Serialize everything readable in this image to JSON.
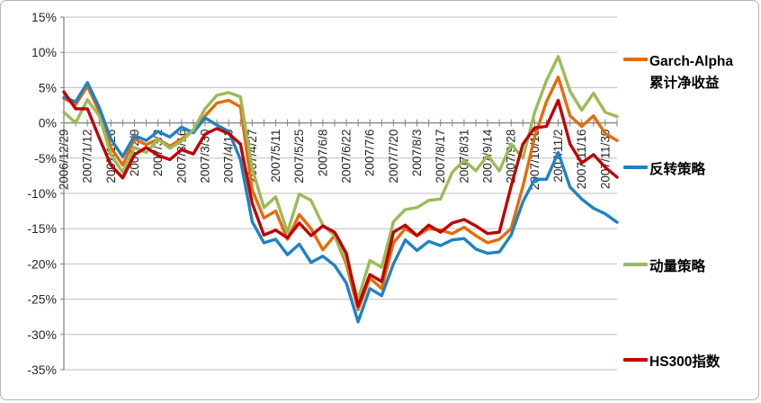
{
  "chart_data": {
    "type": "line",
    "title": "",
    "xlabel": "",
    "ylabel": "",
    "grid": true,
    "legend_position": "right",
    "y_axis": {
      "min": -35,
      "max": 15,
      "step": 5,
      "unit": "%",
      "tick_labels": [
        "15%",
        "10%",
        "5%",
        "0%",
        "-5%",
        "-10%",
        "-15%",
        "-20%",
        "-25%",
        "-30%",
        "-35%"
      ]
    },
    "x_axis": {
      "points": 48,
      "label_every": 2,
      "tick_labels": [
        "2006/12/29",
        "2007/1/12",
        "2007/1/26",
        "2007/2/9",
        "2007/3/2",
        "2007/3/16",
        "2007/3/30",
        "2007/4/13",
        "2007/4/27",
        "2007/5/11",
        "2007/5/25",
        "2007/6/8",
        "2007/6/22",
        "2007/7/6",
        "2007/7/20",
        "2007/8/3",
        "2007/8/17",
        "2007/8/31",
        "2007/9/14",
        "2007/9/28",
        "2007/10/19",
        "2007/11/2",
        "2007/11/16",
        "2007/11/30"
      ]
    },
    "series": [
      {
        "name": "Garch-Alpha累计净收益",
        "color": "#E46C0A",
        "values": [
          3.5,
          2.6,
          5.2,
          1.6,
          -3.5,
          -6.0,
          -2.3,
          -3.1,
          -2.3,
          -3.3,
          -2.3,
          -1.0,
          1.0,
          2.8,
          3.2,
          2.3,
          -9.5,
          -13.5,
          -12.5,
          -16.5,
          -13.0,
          -15.0,
          -18.0,
          -16.0,
          -20.0,
          -26.5,
          -22.0,
          -23.5,
          -17.0,
          -15.0,
          -16.0,
          -15.0,
          -15.2,
          -15.7,
          -14.8,
          -16.0,
          -17.0,
          -16.5,
          -15.0,
          -9.0,
          -2.0,
          3.0,
          6.5,
          1.0,
          -0.5,
          1.0,
          -1.5,
          -2.5
        ]
      },
      {
        "name": "反转策略",
        "color": "#1F82C4",
        "values": [
          3.6,
          3.0,
          5.7,
          2.2,
          -2.3,
          -4.8,
          -1.8,
          -2.5,
          -1.2,
          -2.0,
          -0.6,
          -1.4,
          0.7,
          -0.3,
          -1.2,
          -5.2,
          -14.0,
          -17.0,
          -16.5,
          -18.7,
          -17.2,
          -19.8,
          -18.9,
          -20.2,
          -22.7,
          -28.2,
          -23.5,
          -24.5,
          -20.0,
          -16.6,
          -18.1,
          -16.8,
          -17.4,
          -16.6,
          -16.4,
          -17.9,
          -18.5,
          -18.3,
          -15.9,
          -11.2,
          -8.0,
          -8.0,
          -4.2,
          -9.1,
          -10.8,
          -12.1,
          -12.9,
          -14.1
        ]
      },
      {
        "name": "动量策略",
        "color": "#9BBB59",
        "values": [
          1.5,
          0.0,
          3.3,
          1.0,
          -4.5,
          -7.0,
          -3.5,
          -4.2,
          -2.3,
          -3.6,
          -2.6,
          -1.0,
          2.0,
          3.9,
          4.3,
          3.7,
          -6.5,
          -12.0,
          -10.5,
          -15.5,
          -10.1,
          -11.0,
          -14.5,
          -16.0,
          -19.5,
          -25.0,
          -19.5,
          -20.5,
          -14.0,
          -12.3,
          -12.0,
          -11.0,
          -10.8,
          -7.0,
          -5.3,
          -6.8,
          -4.6,
          -6.8,
          -3.0,
          -5.0,
          1.5,
          6.0,
          9.4,
          4.5,
          1.8,
          4.2,
          1.5,
          0.9
        ]
      },
      {
        "name": "HS300指数",
        "color": "#C00000",
        "values": [
          4.4,
          2.0,
          2.0,
          -2.1,
          -6.0,
          -7.8,
          -4.5,
          -3.5,
          -4.6,
          -5.2,
          -3.8,
          -4.4,
          -1.6,
          -0.8,
          -1.5,
          -3.0,
          -11.4,
          -15.9,
          -15.2,
          -16.3,
          -14.2,
          -16.0,
          -14.6,
          -15.5,
          -18.5,
          -26.0,
          -21.5,
          -22.5,
          -15.5,
          -14.5,
          -16.0,
          -14.5,
          -15.5,
          -14.2,
          -13.7,
          -14.6,
          -15.7,
          -15.5,
          -9.0,
          -3.0,
          -0.7,
          -0.5,
          3.2,
          -3.0,
          -5.7,
          -4.5,
          -6.3,
          -7.7
        ]
      }
    ]
  },
  "legend": {
    "items": [
      {
        "line1": "Garch-Alpha",
        "line2": "累计净收益"
      },
      {
        "line1": "反转策略",
        "line2": ""
      },
      {
        "line1": "动量策略",
        "line2": ""
      },
      {
        "line1": "HS300指数",
        "line2": ""
      }
    ]
  }
}
